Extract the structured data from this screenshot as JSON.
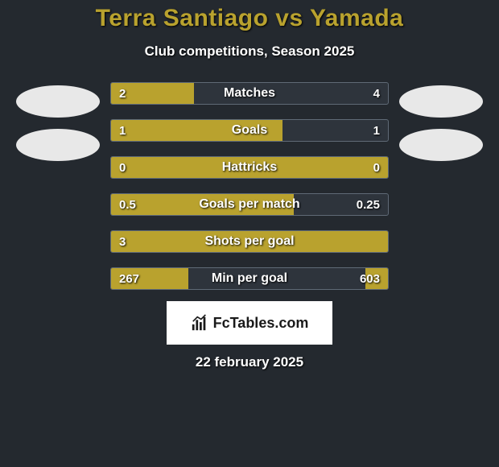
{
  "title": "Terra Santiago vs Yamada",
  "subtitle": "Club competitions, Season 2025",
  "date": "22 february 2025",
  "logo_text": "FcTables.com",
  "colors": {
    "background": "#24292f",
    "accent": "#b9a22e",
    "border": "#5f6a76",
    "row_bg": "#2e343c",
    "avatar": "#e8e8e8",
    "text": "#ffffff",
    "logo_bg": "#ffffff",
    "logo_text": "#1a1a1a"
  },
  "stats": [
    {
      "label": "Matches",
      "left_val": "2",
      "right_val": "4",
      "left_pct": 30,
      "right_pct": 0
    },
    {
      "label": "Goals",
      "left_val": "1",
      "right_val": "1",
      "left_pct": 62,
      "right_pct": 0
    },
    {
      "label": "Hattricks",
      "left_val": "0",
      "right_val": "0",
      "left_pct": 100,
      "right_pct": 0
    },
    {
      "label": "Goals per match",
      "left_val": "0.5",
      "right_val": "0.25",
      "left_pct": 66,
      "right_pct": 0
    },
    {
      "label": "Shots per goal",
      "left_val": "3",
      "right_val": "",
      "left_pct": 100,
      "right_pct": 0
    },
    {
      "label": "Min per goal",
      "left_val": "267",
      "right_val": "603",
      "left_pct": 28,
      "right_pct": 8
    }
  ]
}
